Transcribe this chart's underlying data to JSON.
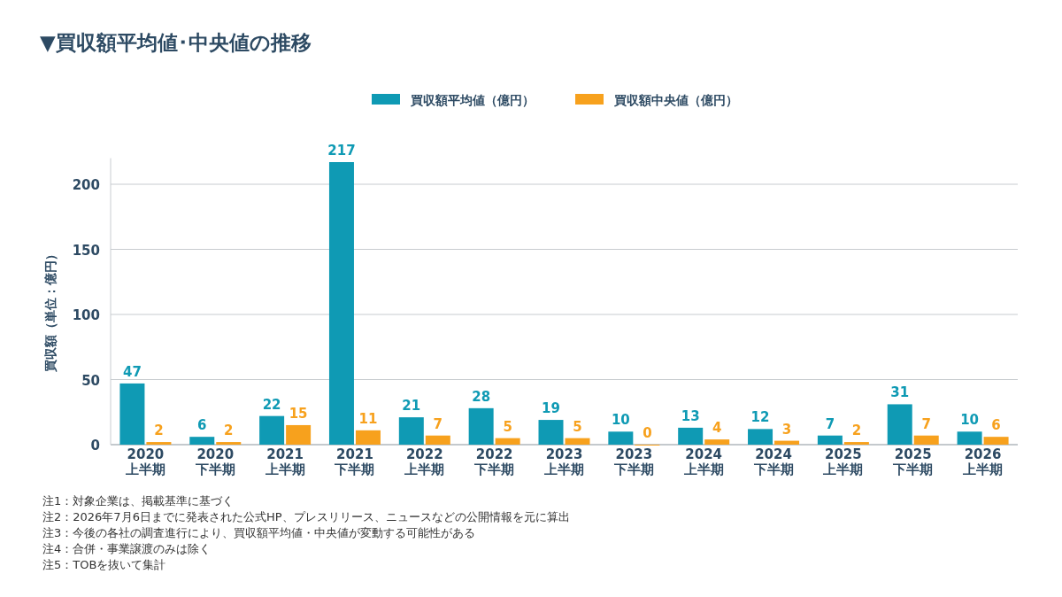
{
  "chart_data": {
    "type": "bar",
    "title": "▼買収額平均値･中央値の推移",
    "ylabel": "買収額（単位：億円）",
    "categories": [
      "2020\n上半期",
      "2020\n下半期",
      "2021\n上半期",
      "2021\n下半期",
      "2022\n上半期",
      "2022\n下半期",
      "2023\n上半期",
      "2023\n下半期",
      "2024\n上半期",
      "2024\n下半期",
      "2025\n上半期",
      "2025\n下半期",
      "2026\n上半期"
    ],
    "series": [
      {
        "name": "買収額平均値（億円）",
        "color": "#0f9ab4",
        "values": [
          47,
          6,
          22,
          217,
          21,
          28,
          19,
          10,
          13,
          12,
          7,
          31,
          10
        ]
      },
      {
        "name": "買収額中央値（億円）",
        "color": "#f7a11d",
        "values": [
          2,
          2,
          15,
          11,
          7,
          5,
          5,
          0,
          4,
          3,
          2,
          7,
          6
        ]
      }
    ],
    "ylim": [
      0,
      220
    ],
    "yticks": [
      0,
      50,
      100,
      150,
      200
    ],
    "grid": "y",
    "legend": "top",
    "data_labels": true,
    "annotations": [
      "注1：対象企業は、掲載基準に基づく",
      "注2：2026年7月6日までに発表された公式HP、プレスリリース、ニュースなどの公開情報を元に算出",
      "注3：今後の各社の調査進行により、買収額平均値・中央値が変動する可能性がある",
      "注4：合併・事業譲渡のみは除く",
      "注5：TOBを抜いて集計"
    ]
  }
}
